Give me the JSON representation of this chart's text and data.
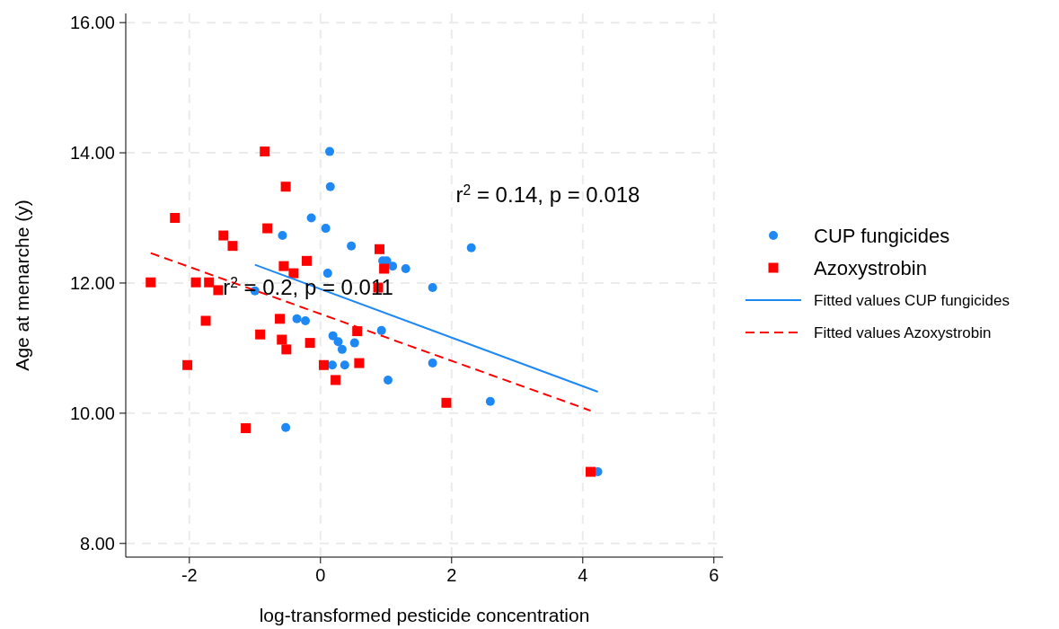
{
  "chart_data": {
    "type": "scatter",
    "xlabel": "log-transformed pesticide concentration",
    "ylabel": "Age at menarche (y)",
    "xlim": [
      -2.97,
      6.14
    ],
    "xticks": [
      -2,
      0,
      2,
      4,
      6
    ],
    "ylim": [
      7.79,
      16.14
    ],
    "yticks": [
      {
        "value": 8,
        "label": "8.00"
      },
      {
        "value": 10,
        "label": "10.00"
      },
      {
        "value": 12,
        "label": "12.00"
      },
      {
        "value": 14,
        "label": "14.00"
      },
      {
        "value": 16,
        "label": "16.00"
      }
    ],
    "grid": true,
    "legend": "right",
    "series": [
      {
        "name": "CUP fungicides",
        "type": "scatter",
        "marker": "circle",
        "color": "#1e88f5",
        "x": [
          0.14,
          0.15,
          -0.14,
          0.08,
          -0.58,
          0.47,
          0.95,
          1.01,
          1.1,
          1.3,
          0.11,
          1.71,
          -1.0,
          -0.36,
          -0.23,
          0.19,
          0.27,
          0.33,
          0.52,
          0.93,
          0.18,
          0.37,
          1.71,
          1.03,
          2.59,
          2.3,
          -0.53,
          4.23
        ],
        "values": [
          14.02,
          13.48,
          13.0,
          12.84,
          12.73,
          12.57,
          12.34,
          12.34,
          12.26,
          12.22,
          12.15,
          11.93,
          11.88,
          11.45,
          11.42,
          11.19,
          11.1,
          10.98,
          11.08,
          11.27,
          10.74,
          10.74,
          10.77,
          10.51,
          10.18,
          12.54,
          9.78,
          9.1
        ]
      },
      {
        "name": "Azoxystrobin",
        "type": "scatter",
        "marker": "square",
        "color": "#ff0000",
        "x": [
          -0.85,
          -0.53,
          -2.22,
          -0.81,
          -1.48,
          -1.34,
          0.9,
          -0.21,
          -0.56,
          -0.41,
          0.97,
          -2.59,
          -1.9,
          -1.7,
          -1.56,
          0.88,
          -1.75,
          -0.62,
          0.56,
          -0.92,
          -0.59,
          -0.16,
          -0.52,
          -2.03,
          0.05,
          0.59,
          0.23,
          -1.14,
          1.92,
          4.12
        ],
        "values": [
          14.02,
          13.48,
          13.0,
          12.84,
          12.73,
          12.57,
          12.52,
          12.34,
          12.26,
          12.15,
          12.22,
          12.01,
          12.01,
          12.01,
          11.89,
          11.93,
          11.42,
          11.45,
          11.26,
          11.21,
          11.13,
          11.08,
          10.98,
          10.74,
          10.74,
          10.77,
          10.51,
          9.77,
          10.16,
          9.1
        ]
      },
      {
        "name": "Fitted values CUP fungicides",
        "type": "line",
        "line_style": "solid",
        "color": "#1e88f5",
        "x": [
          -1.0,
          4.23
        ],
        "values": [
          12.28,
          10.33
        ]
      },
      {
        "name": "Fitted values Azoxystrobin",
        "type": "line",
        "line_style": "dashed",
        "color": "#ff0000",
        "x": [
          -2.59,
          4.12
        ],
        "values": [
          12.46,
          10.04
        ]
      }
    ],
    "annotations": [
      "r$^{2}$ = 0.14, p = 0.018",
      "r$^{2}$ = 0.2, p = 0.011"
    ]
  }
}
